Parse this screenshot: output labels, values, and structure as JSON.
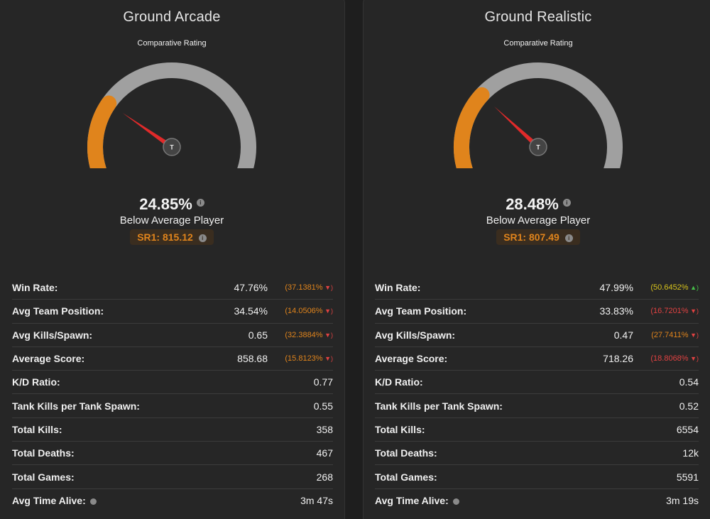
{
  "colors": {
    "accent_orange": "#e0841c",
    "gauge_track": "#a0a0a0",
    "needle": "#e02a2a",
    "negative": "#e04242",
    "positive": "#47c04a",
    "caution": "#d6c21c"
  },
  "panels": [
    {
      "title": "Ground Arcade",
      "subtitle": "Comparative Rating",
      "gauge_percent": 24.85,
      "hub_label": "T",
      "percent_text": "24.85%",
      "verdict": "Below Average Player",
      "sr_text": "SR1: 815.12",
      "info_icon": "info-icon",
      "stats": [
        {
          "label": "Win Rate:",
          "value": "47.76%",
          "delta": "(37.1381%",
          "delta_color": "orange",
          "trend": "down"
        },
        {
          "label": "Avg Team Position:",
          "value": "34.54%",
          "delta": "(14.0506%",
          "delta_color": "orange",
          "trend": "down"
        },
        {
          "label": "Avg Kills/Spawn:",
          "value": "0.65",
          "delta": "(32.3884%",
          "delta_color": "orange",
          "trend": "down"
        },
        {
          "label": "Average Score:",
          "value": "858.68",
          "delta": "(15.8123%",
          "delta_color": "orange",
          "trend": "down"
        },
        {
          "label": "K/D Ratio:",
          "value": "0.77"
        },
        {
          "label": "Tank Kills per Tank Spawn:",
          "value": "0.55"
        },
        {
          "label": "Total Kills:",
          "value": "358"
        },
        {
          "label": "Total Deaths:",
          "value": "467"
        },
        {
          "label": "Total Games:",
          "value": "268"
        },
        {
          "label": "Avg Time Alive:",
          "value": "3m 47s",
          "has_dot": true
        }
      ]
    },
    {
      "title": "Ground Realistic",
      "subtitle": "Comparative Rating",
      "gauge_percent": 28.48,
      "hub_label": "T",
      "percent_text": "28.48%",
      "verdict": "Below Average Player",
      "sr_text": "SR1: 807.49",
      "info_icon": "info-icon",
      "stats": [
        {
          "label": "Win Rate:",
          "value": "47.99%",
          "delta": "(50.6452%",
          "delta_color": "yellow",
          "trend": "up"
        },
        {
          "label": "Avg Team Position:",
          "value": "33.83%",
          "delta": "(16.7201%",
          "delta_color": "red",
          "trend": "down"
        },
        {
          "label": "Avg Kills/Spawn:",
          "value": "0.47",
          "delta": "(27.7411%",
          "delta_color": "orange",
          "trend": "down"
        },
        {
          "label": "Average Score:",
          "value": "718.26",
          "delta": "(18.8068%",
          "delta_color": "red",
          "trend": "down"
        },
        {
          "label": "K/D Ratio:",
          "value": "0.54"
        },
        {
          "label": "Tank Kills per Tank Spawn:",
          "value": "0.52"
        },
        {
          "label": "Total Kills:",
          "value": "6554"
        },
        {
          "label": "Total Deaths:",
          "value": "12k"
        },
        {
          "label": "Total Games:",
          "value": "5591"
        },
        {
          "label": "Avg Time Alive:",
          "value": "3m 19s",
          "has_dot": true
        }
      ]
    }
  ]
}
